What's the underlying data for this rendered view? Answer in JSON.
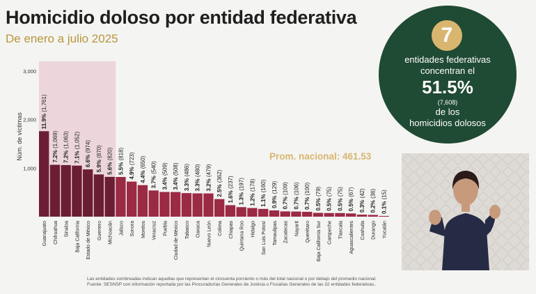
{
  "header": {
    "title": "Homicidio doloso por entidad federativa",
    "subtitle": "De enero a julio 2025"
  },
  "summary": {
    "count": "7",
    "line1": "entidades federativas",
    "line2": "concentran el",
    "percent": "51.5%",
    "small": "(7,608)",
    "line3": "de los",
    "line4": "homicidios dolosos"
  },
  "footnote": {
    "line1": "Las entidades sombreadas indican aquellas que representan el cincuenta porciento o más del total nacional o por debajo del promedio nacional.",
    "line2": "Fuente: SESNSP con información reportada por las Procuradurías Generales de Justicia o Fiscalías Generales de las 32 entidades federativas.."
  },
  "colors": {
    "dark_bar": "#6b1e33",
    "light_bar": "#9b2a45",
    "highlight_bg": "#ecd6dc",
    "circle_bg": "#1f4a33",
    "accent_gold": "#d9b66f",
    "subtitle_gold": "#b8963a"
  },
  "chart_data": {
    "type": "bar",
    "title": "",
    "xlabel": "",
    "ylabel": "Núm. de víctimas",
    "ylim": [
      0,
      3000
    ],
    "yticks": [
      "3,000",
      "2,000",
      "1,000"
    ],
    "ytick_values": [
      3000,
      2000,
      1000
    ],
    "reference_label": "Prom. nacional: 461.53",
    "reference_value": 461.53,
    "highlighted_count": 7,
    "categories": [
      "Guanajuato",
      "Chihuahua",
      "Sinaloa",
      "Baja California",
      "Estado de México",
      "Guerrero",
      "Michoacán",
      "Jalisco",
      "Sonora",
      "Morelos",
      "Veracruz",
      "Puebla",
      "Ciudad de México",
      "Tabasco",
      "Oaxaca",
      "Nuevo León",
      "Colima",
      "Chiapas",
      "Quintana Roo",
      "Hidalgo",
      "San Luis Potosí",
      "Tamaulipas",
      "Zacatecas",
      "Nayarit",
      "Querétaro",
      "Baja California Sur",
      "Campeche",
      "Tlaxcala",
      "Aguascalientes",
      "Coahuila",
      "Durango",
      "Yucatán"
    ],
    "values": [
      1761,
      1069,
      1063,
      1052,
      974,
      870,
      820,
      818,
      723,
      650,
      540,
      509,
      508,
      486,
      480,
      479,
      362,
      237,
      197,
      178,
      160,
      129,
      109,
      106,
      100,
      79,
      75,
      75,
      67,
      42,
      36,
      15
    ],
    "percents": [
      "11.9%",
      "7.2%",
      "7.2%",
      "7.1%",
      "6.6%",
      "5.9%",
      "5.6%",
      "5.5%",
      "4.9%",
      "4.4%",
      "3.7%",
      "3.4%",
      "3.4%",
      "3.3%",
      "3.3%",
      "3.2%",
      "2.5%",
      "1.6%",
      "1.3%",
      "1.2%",
      "1.1%",
      "0.9%",
      "0.7%",
      "0.7%",
      "0.7%",
      "0.5%",
      "0.5%",
      "0.5%",
      "0.5%",
      "0.3%",
      "0.2%",
      "0.1%"
    ],
    "counts": [
      "(1,761)",
      "(1,069)",
      "(1,063)",
      "(1,052)",
      "(974)",
      "(870)",
      "(820)",
      "(818)",
      "(723)",
      "(650)",
      "(540)",
      "(509)",
      "(508)",
      "(486)",
      "(480)",
      "(479)",
      "(362)",
      "(237)",
      "(197)",
      "(178)",
      "(160)",
      "(129)",
      "(109)",
      "(106)",
      "(100)",
      "(79)",
      "(75)",
      "(75)",
      "(67)",
      "(42)",
      "(36)",
      "(15)"
    ]
  }
}
